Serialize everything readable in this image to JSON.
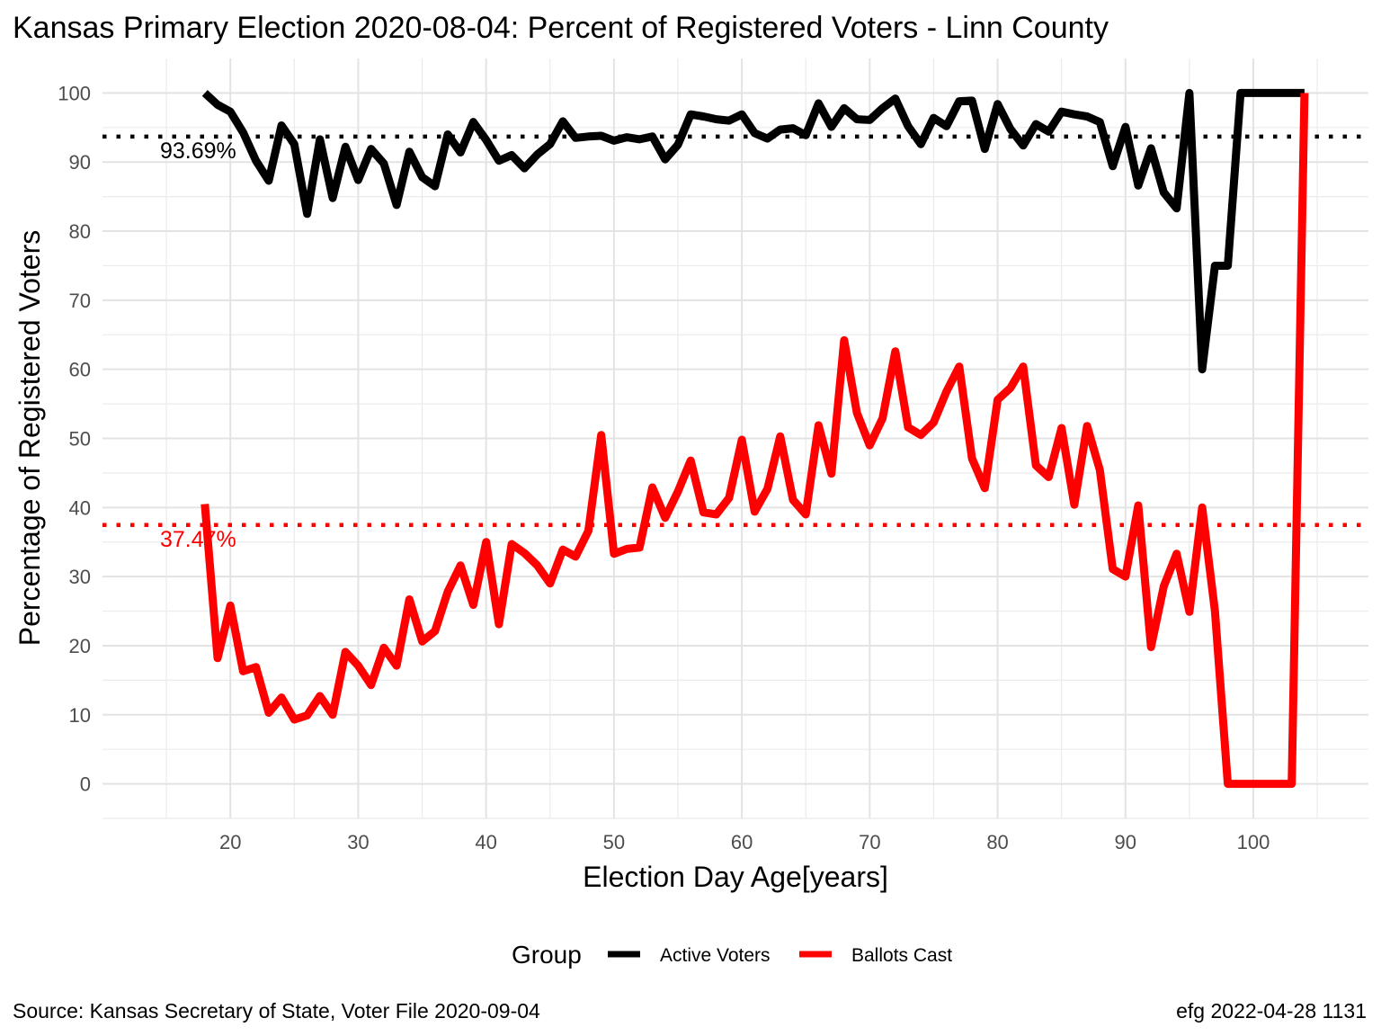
{
  "title": "Kansas Primary Election 2020-08-04:  Percent of Registered Voters - Linn County",
  "caption_left": "Source:  Kansas Secretary of State, Voter File  2020-09-04",
  "caption_right": "efg 2022-04-28 1131",
  "legend": {
    "title": "Group",
    "items": [
      {
        "label": "Active Voters",
        "color": "#000000"
      },
      {
        "label": "Ballots Cast",
        "color": "#ff0000"
      }
    ]
  },
  "chart_data": {
    "type": "line",
    "xlabel": "Election Day Age[years]",
    "ylabel": "Percentage of Registered Voters",
    "xlim": [
      10,
      109
    ],
    "ylim": [
      -5,
      105
    ],
    "x_ticks": [
      20,
      30,
      40,
      50,
      60,
      70,
      80,
      90,
      100
    ],
    "y_ticks": [
      0,
      10,
      20,
      30,
      40,
      50,
      60,
      70,
      80,
      90,
      100
    ],
    "grid": true,
    "legend_position": "bottom",
    "x": [
      18,
      19,
      20,
      21,
      22,
      23,
      24,
      25,
      26,
      27,
      28,
      29,
      30,
      31,
      32,
      33,
      34,
      35,
      36,
      37,
      38,
      39,
      40,
      41,
      42,
      43,
      44,
      45,
      46,
      47,
      48,
      49,
      50,
      51,
      52,
      53,
      54,
      55,
      56,
      57,
      58,
      59,
      60,
      61,
      62,
      63,
      64,
      65,
      66,
      67,
      68,
      69,
      70,
      71,
      72,
      73,
      74,
      75,
      76,
      77,
      78,
      79,
      80,
      81,
      82,
      83,
      84,
      85,
      86,
      87,
      88,
      89,
      90,
      91,
      92,
      93,
      94,
      95,
      96,
      97,
      98,
      99,
      100,
      101,
      102,
      103,
      104
    ],
    "series": [
      {
        "name": "Active Voters",
        "color": "#000000",
        "values": [
          100,
          98.3,
          97.3,
          94.3,
          90.2,
          87.3,
          95.3,
          92.6,
          82.5,
          93.3,
          84.8,
          92.2,
          87.4,
          91.9,
          89.8,
          83.8,
          91.5,
          87.8,
          86.5,
          94,
          91.4,
          95.8,
          93.2,
          90.2,
          91,
          89.1,
          91.1,
          92.6,
          95.9,
          93.5,
          93.7,
          93.8,
          93.1,
          93.6,
          93.3,
          93.7,
          90.4,
          92.5,
          96.9,
          96.6,
          96.2,
          96,
          96.9,
          94.2,
          93.4,
          94.7,
          94.9,
          93.9,
          98.5,
          95.1,
          97.8,
          96.2,
          96.1,
          97.8,
          99.2,
          95.2,
          92.6,
          96.4,
          95.2,
          98.8,
          98.9,
          91.9,
          98.4,
          94.8,
          92.4,
          95.5,
          94.4,
          97.3,
          96.9,
          96.6,
          95.8,
          89.4,
          95.1,
          86.6,
          92,
          85.6,
          83.3,
          100,
          60,
          75,
          75,
          100,
          100,
          100,
          100,
          100,
          100
        ]
      },
      {
        "name": "Ballots Cast",
        "color": "#ff0000",
        "values": [
          40.5,
          18.2,
          25.8,
          16.3,
          16.9,
          10.3,
          12.5,
          9.3,
          9.9,
          12.7,
          10,
          19.1,
          17.1,
          14.3,
          19.7,
          17.1,
          26.7,
          20.6,
          22.1,
          27.8,
          31.6,
          25.9,
          35,
          23.1,
          34.7,
          33.4,
          31.6,
          29,
          33.9,
          32.9,
          36.6,
          50.5,
          33.3,
          34,
          34.2,
          42.9,
          38.5,
          42.3,
          46.8,
          39.3,
          39,
          41.4,
          49.8,
          39.4,
          42.7,
          50.3,
          41.1,
          39,
          51.9,
          44.9,
          64.2,
          53.7,
          49,
          52.9,
          62.6,
          51.6,
          50.5,
          52.3,
          56.8,
          60.4,
          47.1,
          42.8,
          55.6,
          57.3,
          60.4,
          46.1,
          44.4,
          51.5,
          40.4,
          51.8,
          45.4,
          31.1,
          30,
          40.3,
          19.8,
          28.6,
          33.3,
          24.9,
          40,
          25,
          0,
          0,
          0,
          0,
          0,
          0,
          100
        ]
      }
    ],
    "reference_lines": [
      {
        "series": "Active Voters",
        "y": 93.69,
        "label": "93.69%",
        "color": "#000000"
      },
      {
        "series": "Ballots Cast",
        "y": 37.47,
        "label": "37.47%",
        "color": "#ff0000"
      }
    ]
  }
}
